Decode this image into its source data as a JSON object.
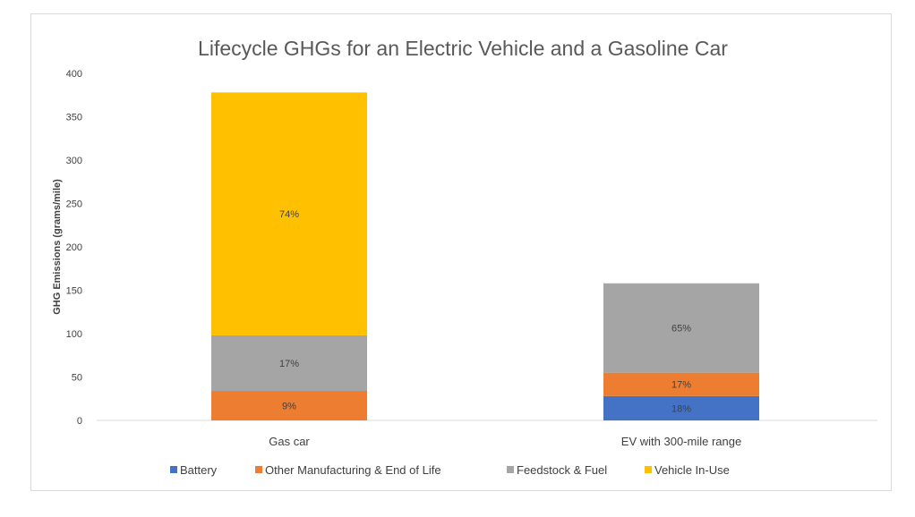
{
  "chart_data": {
    "type": "bar",
    "stacked": true,
    "title": "Lifecycle GHGs for an Electric Vehicle and a Gasoline Car",
    "ylabel": "GHG Emissions (grams/mile)",
    "xlabel": "",
    "ylim": [
      0,
      400
    ],
    "yticks": [
      0,
      50,
      100,
      150,
      200,
      250,
      300,
      350,
      400
    ],
    "grid": false,
    "legend_position": "bottom",
    "categories": [
      "Gas car",
      "EV with 300-mile range"
    ],
    "series": [
      {
        "name": "Battery",
        "color": "#4472C4",
        "values": [
          0,
          28
        ],
        "labels": [
          "",
          "18%"
        ]
      },
      {
        "name": "Other Manufacturing & End of Life",
        "color": "#ED7D31",
        "values": [
          34,
          27
        ],
        "labels": [
          "9%",
          "17%"
        ]
      },
      {
        "name": "Feedstock & Fuel",
        "color": "#A5A5A5",
        "values": [
          64,
          103
        ],
        "labels": [
          "17%",
          "65%"
        ]
      },
      {
        "name": "Vehicle In-Use",
        "color": "#FFC000",
        "values": [
          280,
          0
        ],
        "labels": [
          "74%",
          ""
        ]
      }
    ]
  }
}
